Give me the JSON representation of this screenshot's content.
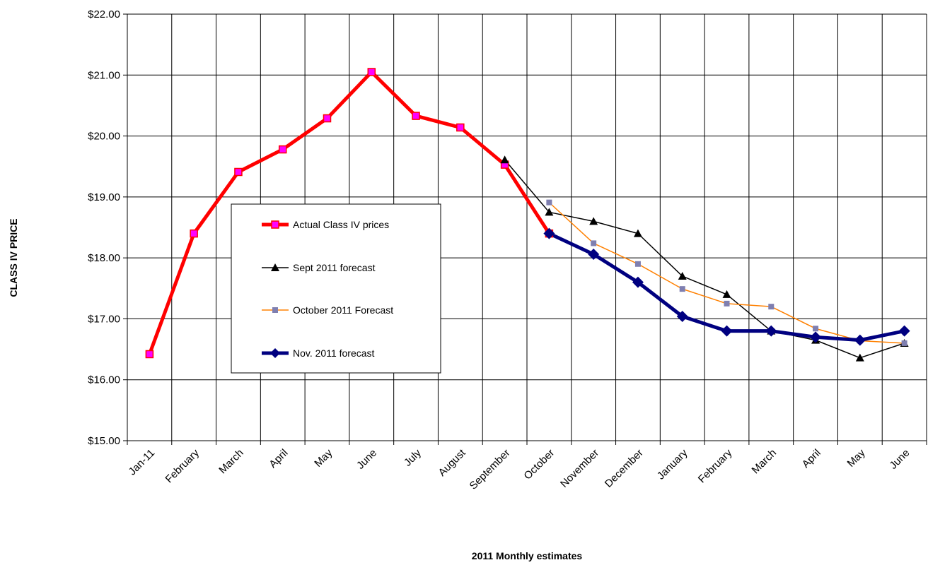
{
  "chart_data": {
    "type": "line",
    "title": "",
    "xlabel": "2011 Monthly estimates",
    "ylabel": "CLASS  IV PRICE",
    "ylim": [
      15,
      22
    ],
    "y_ticks": [
      "$15.00",
      "$16.00",
      "$17.00",
      "$18.00",
      "$19.00",
      "$20.00",
      "$21.00",
      "$22.00"
    ],
    "grid": true,
    "legend_position": "center-left",
    "categories": [
      "Jan-11",
      "February",
      "March",
      "April",
      "May",
      "June",
      "July",
      "August",
      "September",
      "October",
      "November",
      "December",
      "January",
      "February",
      "March",
      "April",
      "May",
      "June"
    ],
    "series": [
      {
        "name": "Actual Class IV prices",
        "color": "#ff0000",
        "marker_fill": "#ff00ff",
        "marker": "square",
        "width": 5,
        "values": [
          16.42,
          18.4,
          19.41,
          19.78,
          20.29,
          21.05,
          20.33,
          20.14,
          19.53,
          18.4,
          null,
          null,
          null,
          null,
          null,
          null,
          null,
          null
        ]
      },
      {
        "name": "Sept 2011 forecast",
        "color": "#000000",
        "marker_fill": "#000000",
        "marker": "triangle",
        "width": 1.5,
        "values": [
          null,
          null,
          null,
          null,
          null,
          null,
          null,
          null,
          19.61,
          18.75,
          18.6,
          18.4,
          17.7,
          17.4,
          16.8,
          16.65,
          16.36,
          16.6
        ]
      },
      {
        "name": "October 2011 Forecast",
        "color": "#ff8000",
        "marker_fill": "#7f7fb0",
        "marker": "square",
        "width": 1.5,
        "values": [
          null,
          null,
          null,
          null,
          null,
          null,
          null,
          null,
          null,
          18.91,
          18.24,
          17.9,
          17.49,
          17.25,
          17.2,
          16.84,
          16.64,
          16.6
        ]
      },
      {
        "name": "Nov. 2011 forecast",
        "color": "#000080",
        "marker_fill": "#000080",
        "marker": "diamond",
        "width": 5,
        "values": [
          null,
          null,
          null,
          null,
          null,
          null,
          null,
          null,
          null,
          18.4,
          18.06,
          17.6,
          17.04,
          16.8,
          16.8,
          16.7,
          16.65,
          16.8
        ]
      }
    ]
  }
}
